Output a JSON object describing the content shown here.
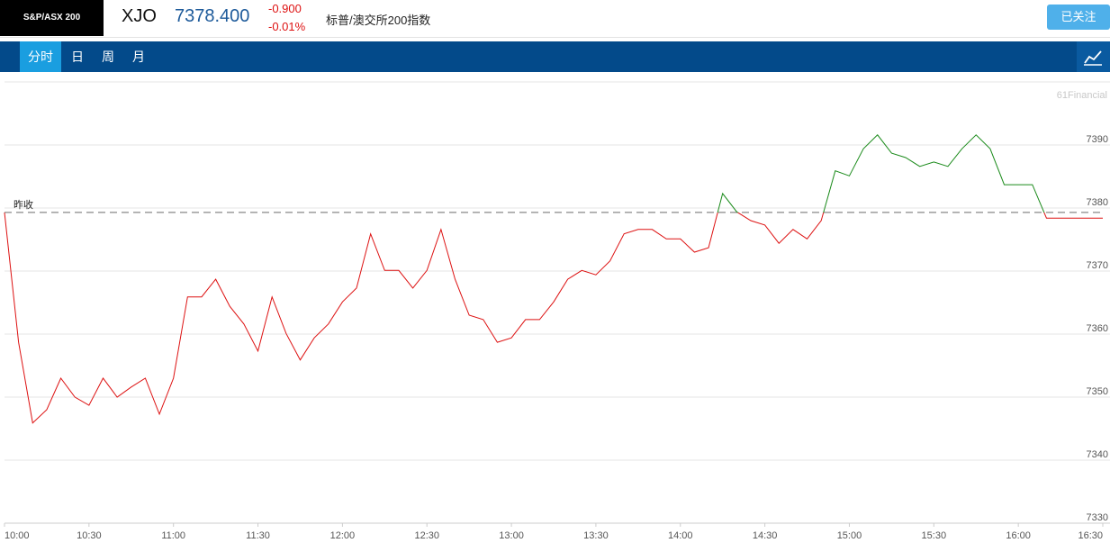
{
  "header": {
    "index_name": "S&P/ASX 200",
    "symbol": "XJO",
    "price": "7378.400",
    "change": "-0.900",
    "change_percent": "-0.01%",
    "full_name": "标普/澳交所200指数",
    "follow_button": "已关注"
  },
  "tabs": [
    "分时",
    "日",
    "周",
    "月"
  ],
  "active_tab": 0,
  "chart_data": {
    "type": "line",
    "watermark": "61Financial",
    "prev_close_label": "昨收",
    "prev_close": 7379.3,
    "color_above": "#1a8a1a",
    "color_below": "#dd1111",
    "x": [
      "10:00",
      "10:05",
      "10:10",
      "10:15",
      "10:20",
      "10:25",
      "10:30",
      "10:35",
      "10:40",
      "10:45",
      "10:50",
      "10:55",
      "11:00",
      "11:05",
      "11:10",
      "11:15",
      "11:20",
      "11:25",
      "11:30",
      "11:35",
      "11:40",
      "11:45",
      "11:50",
      "11:55",
      "12:00",
      "12:05",
      "12:10",
      "12:15",
      "12:20",
      "12:25",
      "12:30",
      "12:35",
      "12:40",
      "12:45",
      "12:50",
      "12:55",
      "13:00",
      "13:05",
      "13:10",
      "13:15",
      "13:20",
      "13:25",
      "13:30",
      "13:35",
      "13:40",
      "13:45",
      "13:50",
      "13:55",
      "14:00",
      "14:05",
      "14:10",
      "14:15",
      "14:20",
      "14:25",
      "14:30",
      "14:35",
      "14:40",
      "14:45",
      "14:50",
      "14:55",
      "15:00",
      "15:05",
      "15:10",
      "15:15",
      "15:20",
      "15:25",
      "15:30",
      "15:35",
      "15:40",
      "15:45",
      "15:50",
      "15:55",
      "16:00",
      "16:05",
      "16:10",
      "16:15",
      "16:20",
      "16:25",
      "16:30"
    ],
    "series": [
      {
        "values": [
          7379.3,
          7358.7,
          7345.9,
          7348,
          7353,
          7350,
          7348.7,
          7353,
          7350,
          7351.6,
          7353,
          7347.3,
          7353,
          7365.9,
          7365.9,
          7368.7,
          7364.4,
          7361.6,
          7357.3,
          7365.9,
          7360.1,
          7355.9,
          7359.4,
          7361.6,
          7365.1,
          7367.3,
          7375.9,
          7370.1,
          7370.1,
          7367.3,
          7370.1,
          7376.6,
          7368.7,
          7363,
          7362.3,
          7358.7,
          7359.4,
          7362.3,
          7362.3,
          7365.1,
          7368.7,
          7370.1,
          7369.4,
          7371.6,
          7375.9,
          7376.6,
          7376.6,
          7375.1,
          7375.1,
          7373,
          7373.7,
          7382.3,
          7379.4,
          7378,
          7377.3,
          7374.4,
          7376.6,
          7375.1,
          7378,
          7385.9,
          7385.1,
          7389.4,
          7391.6,
          7388.7,
          7388,
          7386.6,
          7387.3,
          7386.6,
          7389.4,
          7391.6,
          7389.4,
          7383.7,
          7383.7,
          7383.7,
          7378.4,
          7378.4,
          7378.4,
          7378.4,
          7378.4
        ]
      }
    ],
    "xlim": [
      "10:00",
      "16:30"
    ],
    "xticks": [
      "10:00",
      "10:30",
      "11:00",
      "11:30",
      "12:00",
      "12:30",
      "13:00",
      "13:30",
      "14:00",
      "14:30",
      "15:00",
      "15:30",
      "16:00",
      "16:30"
    ],
    "ylim": [
      7330,
      7400
    ],
    "yticks": [
      7330,
      7340,
      7350,
      7360,
      7370,
      7380,
      7390
    ],
    "grid": true
  }
}
